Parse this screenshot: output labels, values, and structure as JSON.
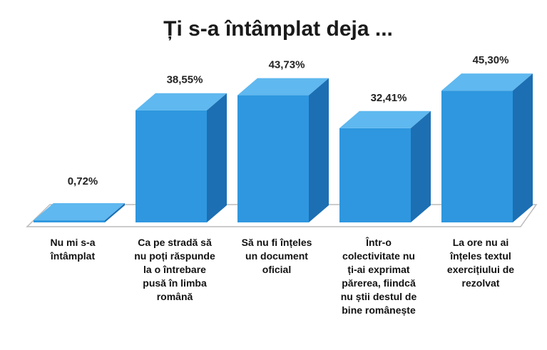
{
  "chart_data": {
    "type": "bar3d",
    "title": "Ți s-a întâmplat deja ...",
    "categories": [
      "Nu mi s-a întâmplat",
      "Ca pe stradă să nu poți răspunde la o întrebare pusă în limba română",
      "Să nu fi înțeles un document oficial",
      "Într-o colectivitate nu ți-ai exprimat părerea, fiindcă nu știi destul de bine românește",
      "La ore nu ai înțeles textul exercițiului de rezolvat"
    ],
    "values": [
      0.72,
      38.55,
      43.73,
      32.41,
      45.3
    ],
    "value_labels": [
      "0,72%",
      "38,55%",
      "43,73%",
      "32,41%",
      "45,30%"
    ],
    "color": "#2e97df"
  }
}
